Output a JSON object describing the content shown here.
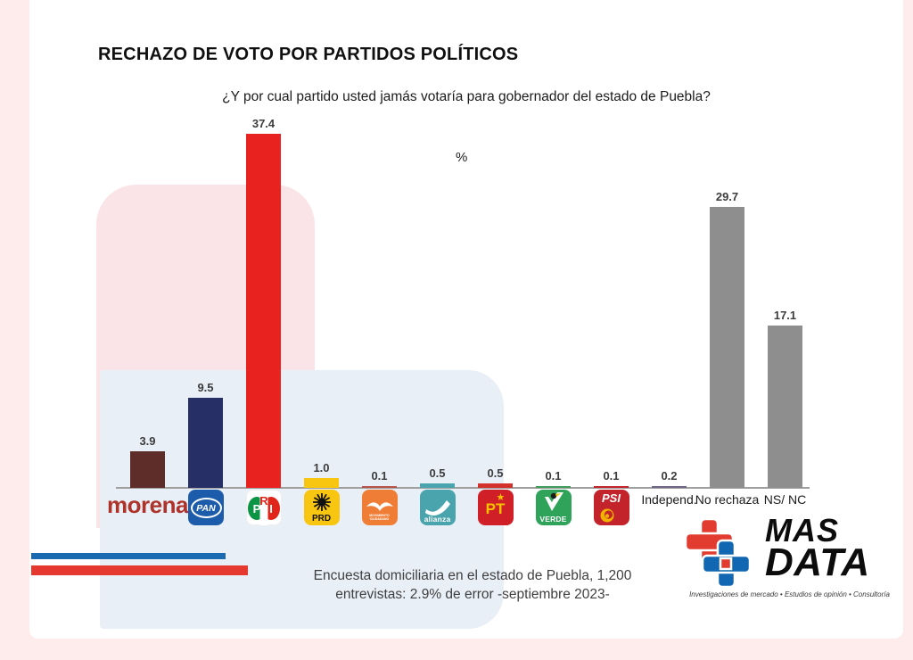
{
  "page": {
    "title": "RECHAZO DE VOTO POR PARTIDOS POLÍTICOS",
    "question": "¿Y por cual partido usted jamás votaría para gobernador del estado de Puebla?",
    "unit_label": "%",
    "footnote": "Encuesta domiciliaria en el estado de Puebla, 1,200 entrevistas: 2.9% de error -septiembre 2023-"
  },
  "chart_data": {
    "type": "bar",
    "title": "RECHAZO DE VOTO POR PARTIDOS POLÍTICOS",
    "question": "¿Y por cual partido usted jamás votaría para gobernador del estado de Puebla?",
    "ylabel": "%",
    "ylim": [
      0,
      40
    ],
    "grid": false,
    "legend": false,
    "categories": [
      "morena",
      "PAN",
      "PRI",
      "PRD",
      "Movimiento Ciudadano",
      "alianza",
      "PT",
      "VERDE",
      "PSI",
      "Independ.",
      "No rechaza",
      "NS/ NC"
    ],
    "values": [
      3.9,
      9.5,
      37.4,
      1.0,
      0.1,
      0.5,
      0.5,
      0.1,
      0.1,
      0.2,
      29.7,
      17.1
    ],
    "value_labels": [
      "3.9",
      "9.5",
      "37.4",
      "1.0",
      "0.1",
      "0.5",
      "0.5",
      "0.1",
      "0.1",
      "0.2",
      "29.7",
      "17.1"
    ],
    "bar_colors": [
      "#5e2d2a",
      "#263066",
      "#e8231f",
      "#f8c511",
      "#b9544c",
      "#4aa4ad",
      "#d2322b",
      "#3f9e5a",
      "#c0262c",
      "#6f6587",
      "#8e8e8e",
      "#8e8e8e"
    ],
    "parties": [
      {
        "label": "morena",
        "logo": "morena"
      },
      {
        "label": "PAN",
        "logo": "pan"
      },
      {
        "label": "PRI",
        "logo": "pri"
      },
      {
        "label": "PRD",
        "logo": "prd"
      },
      {
        "label": "MOVIMIENTO CIUDADANO",
        "logo": "mc"
      },
      {
        "label": "alianza",
        "logo": "alianza"
      },
      {
        "label": "PT",
        "logo": "pt"
      },
      {
        "label": "VERDE",
        "logo": "verde"
      },
      {
        "label": "PSI",
        "logo": "psi"
      },
      {
        "label": "Independ.",
        "logo": "text"
      },
      {
        "label": "No rechaza",
        "logo": "text"
      },
      {
        "label": "NS/ NC",
        "logo": "text"
      }
    ],
    "logo_colors": {
      "pan_bg": "#1d5cab",
      "pri_green": "#0b9444",
      "pri_red": "#e1251b",
      "prd_bg": "#f8c511",
      "mc_bg": "#ef7d35",
      "alianza_bg": "#4aa4ad",
      "pt_bg": "#d01f26",
      "verde_bg": "#2fa35a",
      "psi_bg": "#c3232b",
      "morena_text": "#ae332b"
    }
  },
  "brand": {
    "name_top": "MAS",
    "name_bottom": "DATA",
    "tagline": "Investigaciones de mercado • Estudios de opinión • Consultoría",
    "cross_red": "#e23c30",
    "cross_blue": "#1167b1"
  }
}
